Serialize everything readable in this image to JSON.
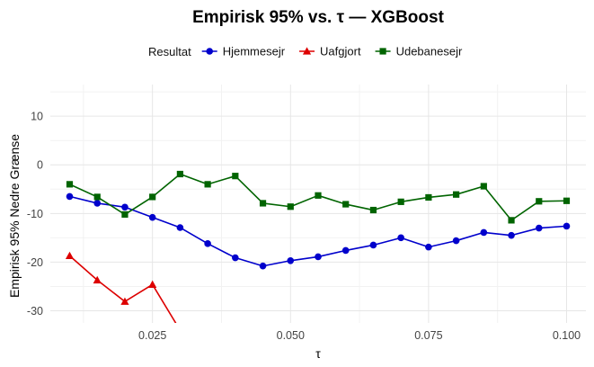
{
  "chart_data": {
    "type": "line",
    "title": "Empirisk 95% vs. τ — XGBoost",
    "xlabel": "τ",
    "ylabel": "Empirisk 95% Nedre Grænse",
    "xlim": [
      0.0065,
      0.1035
    ],
    "ylim": [
      -32.5,
      16.5
    ],
    "xticks": [
      0.025,
      0.05,
      0.075,
      0.1
    ],
    "xtick_labels": [
      "0.025",
      "0.050",
      "0.075",
      "0.100"
    ],
    "yticks": [
      -30,
      -20,
      -10,
      0,
      10
    ],
    "ytick_labels": [
      "-30",
      "-20",
      "-10",
      "0",
      "10"
    ],
    "grid": true,
    "legend": {
      "title": "Resultat",
      "position": "top"
    },
    "series": [
      {
        "name": "Hjemmesejr",
        "color": "#0000cc",
        "marker": "circle",
        "x": [
          0.01,
          0.015,
          0.02,
          0.025,
          0.03,
          0.035,
          0.04,
          0.045,
          0.05,
          0.055,
          0.06,
          0.065,
          0.07,
          0.075,
          0.08,
          0.085,
          0.09,
          0.095,
          0.1
        ],
        "y": [
          -6.5,
          -7.9,
          -8.7,
          -10.8,
          -12.9,
          -16.2,
          -19.1,
          -20.8,
          -19.7,
          -18.9,
          -17.6,
          -16.5,
          -15.0,
          -16.9,
          -15.6,
          -13.9,
          -14.5,
          -13.0,
          -12.6
        ]
      },
      {
        "name": "Uafgjort",
        "color": "#dd0000",
        "marker": "triangle",
        "x": [
          0.01,
          0.015,
          0.02,
          0.025,
          0.03
        ],
        "y": [
          -18.7,
          -23.7,
          -28.1,
          -24.6,
          -34.0
        ]
      },
      {
        "name": "Udebanesejr",
        "color": "#006400",
        "marker": "square",
        "x": [
          0.01,
          0.015,
          0.02,
          0.025,
          0.03,
          0.035,
          0.04,
          0.045,
          0.05,
          0.055,
          0.06,
          0.065,
          0.07,
          0.075,
          0.08,
          0.085,
          0.09,
          0.095,
          0.1
        ],
        "y": [
          -4.0,
          -6.6,
          -10.2,
          -6.6,
          -1.9,
          -4.0,
          -2.3,
          -7.9,
          -8.6,
          -6.3,
          -8.1,
          -9.3,
          -7.6,
          -6.7,
          -6.1,
          -4.4,
          -11.4,
          -7.5,
          -7.4
        ]
      }
    ]
  }
}
